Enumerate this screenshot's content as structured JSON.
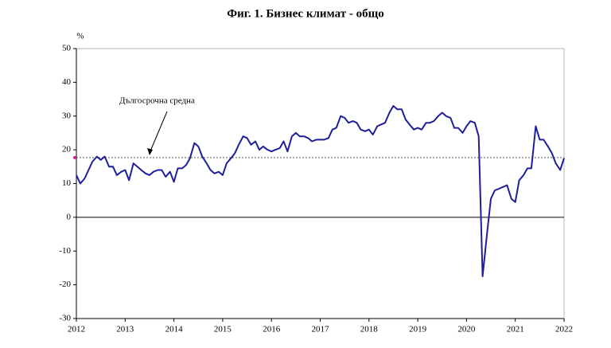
{
  "chart_data": {
    "type": "line",
    "title": "Фиг. 1. Бизнес климат - общо",
    "y_unit": "%",
    "annotation": "Дългосрочна средна",
    "average": 17.7,
    "x": [
      2012,
      2012.08,
      2012.17,
      2012.25,
      2012.33,
      2012.42,
      2012.5,
      2012.58,
      2012.67,
      2012.75,
      2012.83,
      2012.92,
      2013,
      2013.08,
      2013.17,
      2013.25,
      2013.33,
      2013.42,
      2013.5,
      2013.58,
      2013.67,
      2013.75,
      2013.83,
      2013.92,
      2014,
      2014.08,
      2014.17,
      2014.25,
      2014.33,
      2014.42,
      2014.5,
      2014.58,
      2014.67,
      2014.75,
      2014.83,
      2014.92,
      2015,
      2015.08,
      2015.17,
      2015.25,
      2015.33,
      2015.42,
      2015.5,
      2015.58,
      2015.67,
      2015.75,
      2015.83,
      2015.92,
      2016,
      2016.08,
      2016.17,
      2016.25,
      2016.33,
      2016.42,
      2016.5,
      2016.58,
      2016.67,
      2016.75,
      2016.83,
      2016.92,
      2017,
      2017.08,
      2017.17,
      2017.25,
      2017.33,
      2017.42,
      2017.5,
      2017.58,
      2017.67,
      2017.75,
      2017.83,
      2017.92,
      2018,
      2018.08,
      2018.17,
      2018.25,
      2018.33,
      2018.42,
      2018.5,
      2018.58,
      2018.67,
      2018.75,
      2018.83,
      2018.92,
      2019,
      2019.08,
      2019.17,
      2019.25,
      2019.33,
      2019.42,
      2019.5,
      2019.58,
      2019.67,
      2019.75,
      2019.83,
      2019.92,
      2020,
      2020.08,
      2020.17,
      2020.25,
      2020.33,
      2020.42,
      2020.5,
      2020.58,
      2020.67,
      2020.75,
      2020.83,
      2020.92,
      2021,
      2021.08,
      2021.17,
      2021.25,
      2021.33,
      2021.42,
      2021.5,
      2021.58,
      2021.67,
      2021.75,
      2021.83,
      2021.92,
      2022
    ],
    "series": [
      {
        "name": "Бизнес климат",
        "color": "#1f1f9a",
        "values": [
          12.5,
          10,
          11.5,
          14,
          16.5,
          18,
          17,
          18,
          15,
          15,
          12.5,
          13.5,
          14,
          11,
          16,
          15,
          14,
          13,
          12.5,
          13.5,
          14,
          14,
          12,
          13.5,
          10.5,
          14.5,
          14.5,
          15.5,
          17.5,
          22,
          21,
          18,
          16,
          14,
          13,
          13.5,
          12.5,
          16,
          17.5,
          19,
          21.5,
          24,
          23.5,
          21.5,
          22.5,
          20,
          21,
          20,
          19.5,
          20,
          20.5,
          22.5,
          19.5,
          24,
          25,
          24,
          24,
          23.5,
          22.5,
          23,
          23,
          23,
          23.5,
          26,
          26.5,
          30,
          29.5,
          28,
          28.5,
          28,
          26,
          25.5,
          26,
          24.5,
          27,
          27.5,
          28,
          31,
          33,
          32,
          32,
          29,
          27.5,
          26,
          26.5,
          26,
          28,
          28,
          28.5,
          30,
          31,
          30,
          29.5,
          26.5,
          26.5,
          25,
          27,
          28.5,
          28,
          24,
          -17.5,
          -5,
          5.5,
          8,
          8.5,
          9,
          9.5,
          5.5,
          4.5,
          11,
          12.5,
          14.5,
          14.5,
          27,
          23,
          23,
          21,
          19,
          16,
          14,
          17.5
        ]
      }
    ],
    "xlim": [
      2012,
      2022
    ],
    "xticks": [
      2012,
      2013,
      2014,
      2015,
      2016,
      2017,
      2018,
      2019,
      2020,
      2021,
      2022
    ],
    "ylim": [
      -30,
      50
    ],
    "yticks": [
      -30,
      -20,
      -10,
      0,
      10,
      20,
      30,
      40,
      50
    ]
  }
}
